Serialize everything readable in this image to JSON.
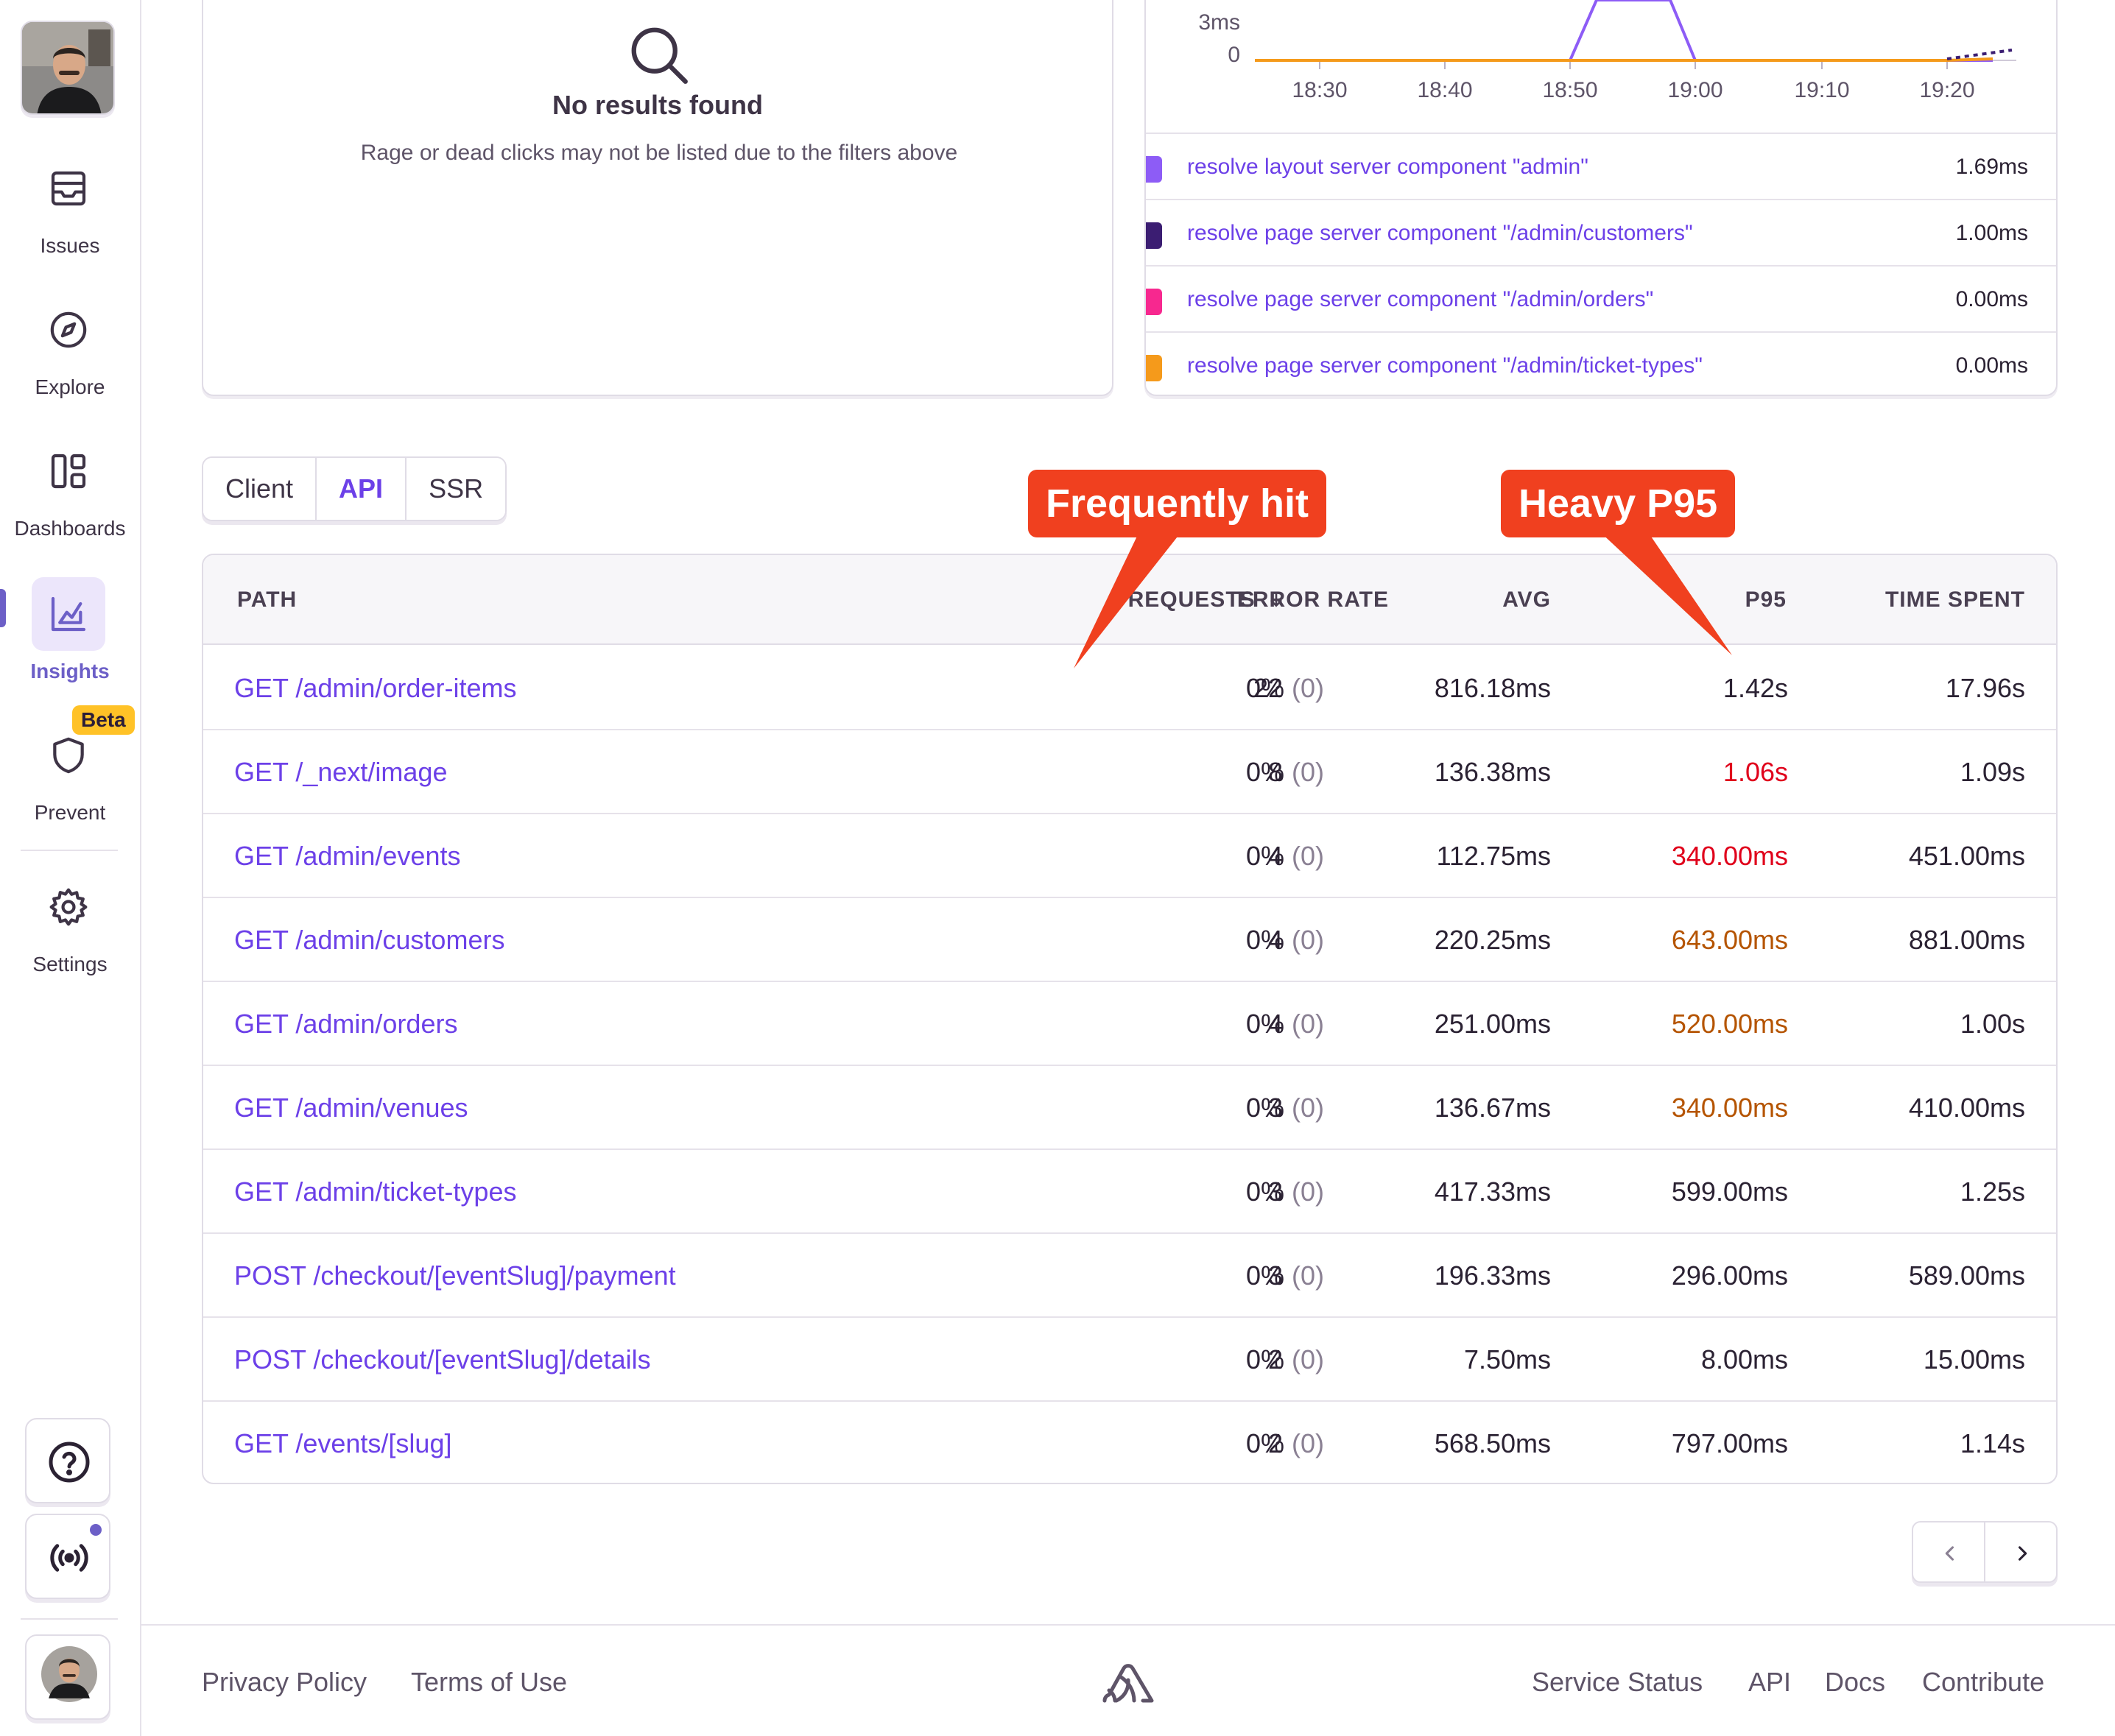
{
  "sidebar": {
    "items": [
      {
        "label": "Issues",
        "icon": "inbox-icon"
      },
      {
        "label": "Explore",
        "icon": "compass-icon"
      },
      {
        "label": "Dashboards",
        "icon": "dashboard-icon"
      },
      {
        "label": "Insights",
        "icon": "chart-icon",
        "active": true
      },
      {
        "label": "Prevent",
        "icon": "shield-icon",
        "badge": "Beta"
      },
      {
        "label": "Settings",
        "icon": "gear-icon"
      }
    ],
    "accent": "#6c5fc7"
  },
  "empty_state": {
    "title": "No results found",
    "description": "Rage or dead clicks may not be listed due to the filters above"
  },
  "chart": {
    "y_ticks": [
      "0ms",
      "3ms",
      "0"
    ],
    "x_ticks": [
      "18:30",
      "18:40",
      "18:50",
      "19:00",
      "19:10",
      "19:20"
    ],
    "legend": [
      {
        "name": "resolve layout server component \"admin\"",
        "value": "1.69ms",
        "color": "#8d5cf6"
      },
      {
        "name": "resolve page server component \"/admin/customers\"",
        "value": "1.00ms",
        "color": "#3b1d72"
      },
      {
        "name": "resolve page server component \"/admin/orders\"",
        "value": "0.00ms",
        "color": "#f7288f"
      },
      {
        "name": "resolve page server component \"/admin/ticket-types\"",
        "value": "0.00ms",
        "color": "#f59a1b"
      }
    ]
  },
  "tabs": [
    {
      "label": "Client",
      "selected": false
    },
    {
      "label": "API",
      "selected": true
    },
    {
      "label": "SSR",
      "selected": false
    }
  ],
  "table": {
    "headers": {
      "path": "PATH",
      "requests": "REQUESTS",
      "error_rate": "ERROR RATE",
      "avg": "AVG",
      "p95": "P95",
      "time_spent": "TIME SPENT"
    },
    "rows": [
      {
        "path": "GET /admin/order-items",
        "requests": "22",
        "error_pct": "0%",
        "error_count": "(0)",
        "avg": "816.18ms",
        "p95": "1.42s",
        "p95_color": "#2b2233",
        "time_spent": "17.96s"
      },
      {
        "path": "GET /_next/image",
        "requests": "8",
        "error_pct": "0%",
        "error_count": "(0)",
        "avg": "136.38ms",
        "p95": "1.06s",
        "p95_color": "#e0001b",
        "time_spent": "1.09s"
      },
      {
        "path": "GET /admin/events",
        "requests": "4",
        "error_pct": "0%",
        "error_count": "(0)",
        "avg": "112.75ms",
        "p95": "340.00ms",
        "p95_color": "#e0001b",
        "time_spent": "451.00ms"
      },
      {
        "path": "GET /admin/customers",
        "requests": "4",
        "error_pct": "0%",
        "error_count": "(0)",
        "avg": "220.25ms",
        "p95": "643.00ms",
        "p95_color": "#b55400",
        "time_spent": "881.00ms"
      },
      {
        "path": "GET /admin/orders",
        "requests": "4",
        "error_pct": "0%",
        "error_count": "(0)",
        "avg": "251.00ms",
        "p95": "520.00ms",
        "p95_color": "#b55400",
        "time_spent": "1.00s"
      },
      {
        "path": "GET /admin/venues",
        "requests": "3",
        "error_pct": "0%",
        "error_count": "(0)",
        "avg": "136.67ms",
        "p95": "340.00ms",
        "p95_color": "#b55400",
        "time_spent": "410.00ms"
      },
      {
        "path": "GET /admin/ticket-types",
        "requests": "3",
        "error_pct": "0%",
        "error_count": "(0)",
        "avg": "417.33ms",
        "p95": "599.00ms",
        "p95_color": "#2b2233",
        "time_spent": "1.25s"
      },
      {
        "path": "POST /checkout/[eventSlug]/payment",
        "requests": "3",
        "error_pct": "0%",
        "error_count": "(0)",
        "avg": "196.33ms",
        "p95": "296.00ms",
        "p95_color": "#2b2233",
        "time_spent": "589.00ms"
      },
      {
        "path": "POST /checkout/[eventSlug]/details",
        "requests": "2",
        "error_pct": "0%",
        "error_count": "(0)",
        "avg": "7.50ms",
        "p95": "8.00ms",
        "p95_color": "#2b2233",
        "time_spent": "15.00ms"
      },
      {
        "path": "GET /events/[slug]",
        "requests": "2",
        "error_pct": "0%",
        "error_count": "(0)",
        "avg": "568.50ms",
        "p95": "797.00ms",
        "p95_color": "#2b2233",
        "time_spent": "1.14s"
      }
    ]
  },
  "callouts": {
    "frequently_hit": "Frequently hit",
    "heavy_p95": "Heavy P95",
    "color": "#f0401f"
  },
  "footer": {
    "left": [
      "Privacy Policy",
      "Terms of Use"
    ],
    "right": [
      "Service Status",
      "API",
      "Docs",
      "Contribute"
    ],
    "logo": "sentry-logo-icon"
  }
}
